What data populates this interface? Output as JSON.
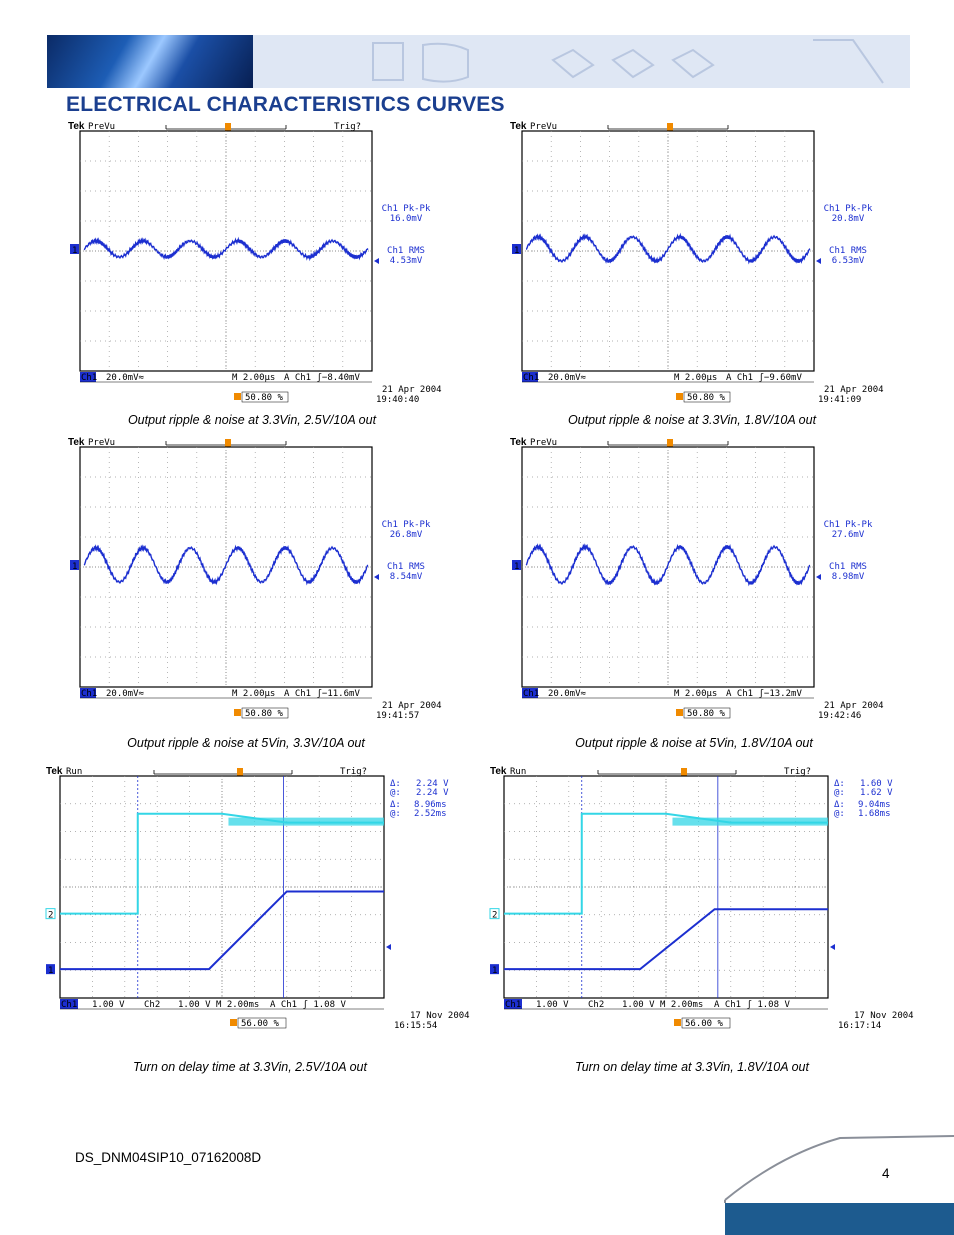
{
  "page": {
    "title": "ELECTRICAL CHARACTERISTICS CURVES",
    "footer_id": "DS_DNM04SIP10_07162008D",
    "page_number": "4"
  },
  "colors": {
    "title": "#1b3f8f",
    "trace_ch1": "#1c2fd0",
    "trace_ch2": "#33d6e6"
  },
  "scopes": [
    {
      "brand": "Tek",
      "mode": "PreVu",
      "trig": "Trig?",
      "meas1_label": "Ch1 Pk-Pk",
      "meas1_value": "16.0mV",
      "meas2_label": "Ch1 RMS",
      "meas2_value": "4.53mV",
      "scale": "20.0mV≈",
      "ch1_marker": "1",
      "timebase": "M 2.00µs",
      "trigger": "A  Ch1 ʃ−8.40mV",
      "position": "50.80 %",
      "date": "21 Apr 2004",
      "time": "19:40:40",
      "caption": "Output ripple & noise at 3.3Vin, 2.5V/10A out"
    },
    {
      "brand": "Tek",
      "mode": "PreVu",
      "trig": "",
      "meas1_label": "Ch1 Pk-Pk",
      "meas1_value": "20.8mV",
      "meas2_label": "Ch1 RMS",
      "meas2_value": "6.53mV",
      "scale": "20.0mV≈",
      "ch1_marker": "1",
      "timebase": "M 2.00µs",
      "trigger": "A  Ch1 ʃ−9.60mV",
      "position": "50.80 %",
      "date": "21 Apr 2004",
      "time": "19:41:09",
      "caption": "Output ripple & noise at 3.3Vin, 1.8V/10A out"
    },
    {
      "brand": "Tek",
      "mode": "PreVu",
      "trig": "",
      "meas1_label": "Ch1 Pk-Pk",
      "meas1_value": "26.8mV",
      "meas2_label": "Ch1 RMS",
      "meas2_value": "8.54mV",
      "scale": "20.0mV≈",
      "ch1_marker": "1",
      "timebase": "M 2.00µs",
      "trigger": "A  Ch1 ʃ−11.6mV",
      "position": "50.80 %",
      "date": "21 Apr 2004",
      "time": "19:41:57",
      "caption": "Output ripple & noise at 5Vin, 3.3V/10A out"
    },
    {
      "brand": "Tek",
      "mode": "PreVu",
      "trig": "",
      "meas1_label": "Ch1 Pk-Pk",
      "meas1_value": "27.6mV",
      "meas2_label": "Ch1 RMS",
      "meas2_value": "8.98mV",
      "scale": "20.0mV≈",
      "ch1_marker": "1",
      "timebase": "M 2.00µs",
      "trigger": "A  Ch1 ʃ−13.2mV",
      "position": "50.80 %",
      "date": "21 Apr 2004",
      "time": "19:42:46",
      "caption": "Output ripple & noise at 5Vin, 1.8V/10A out"
    },
    {
      "brand": "Tek",
      "mode": "Run",
      "trig": "Trig?",
      "d1_label": "Δ:",
      "d1_value": "2.24 V",
      "a1_label": "@:",
      "a1_value": "2.24 V",
      "d2_label": "Δ:",
      "d2_value": "8.96ms",
      "a2_label": "@:",
      "a2_value": "2.52ms",
      "ch1_scale": "1.00 V",
      "ch2_scale": "1.00 V",
      "timebase": "M 2.00ms",
      "trigger": "A  Ch1 ʃ   1.08 V",
      "ch1_marker": "1",
      "ch2_marker": "2",
      "position": "56.00 %",
      "date": "17 Nov 2004",
      "time": "16:15:54",
      "caption": "Turn on delay time at 3.3Vin, 2.5V/10A out"
    },
    {
      "brand": "Tek",
      "mode": "Run",
      "trig": "Trig?",
      "d1_label": "Δ:",
      "d1_value": "1.60 V",
      "a1_label": "@:",
      "a1_value": "1.62 V",
      "d2_label": "Δ:",
      "d2_value": "9.04ms",
      "a2_label": "@:",
      "a2_value": "1.68ms",
      "ch1_scale": "1.00 V",
      "ch2_scale": "1.00 V",
      "timebase": "M 2.00ms",
      "trigger": "A  Ch1 ʃ   1.08 V",
      "ch1_marker": "1",
      "ch2_marker": "2",
      "position": "56.00 %",
      "date": "17 Nov 2004",
      "time": "16:17:14",
      "caption": "Turn on delay time at 3.3Vin, 1.8V/10A out"
    }
  ]
}
